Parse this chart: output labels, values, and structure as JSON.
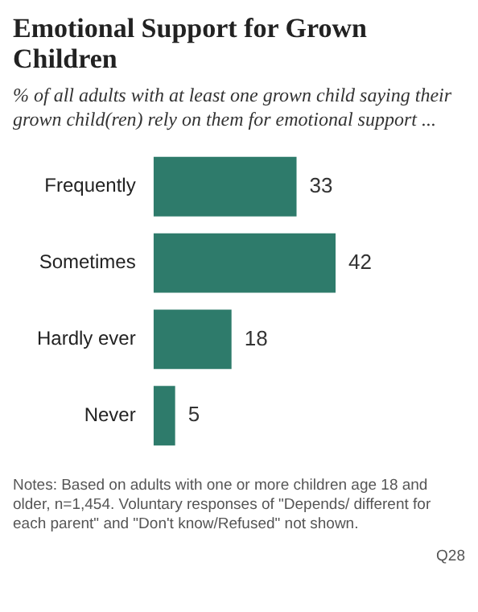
{
  "chart_data": {
    "type": "bar",
    "orientation": "horizontal",
    "title": "Emotional Support for Grown Children",
    "subtitle": "% of all adults with at least one grown child saying their grown child(ren) rely on them for emotional support ...",
    "categories": [
      "Frequently",
      "Sometimes",
      "Hardly ever",
      "Never"
    ],
    "values": [
      33,
      42,
      18,
      5
    ],
    "color": "#2e7b6b",
    "data_labels": true,
    "annotations": [
      "Notes: Based on adults with one or more children age 18 and older, n=1,454. Voluntary responses of \"Depends/ different for each parent\" and \"Don't know/Refused\" not shown.",
      "Q28"
    ]
  }
}
